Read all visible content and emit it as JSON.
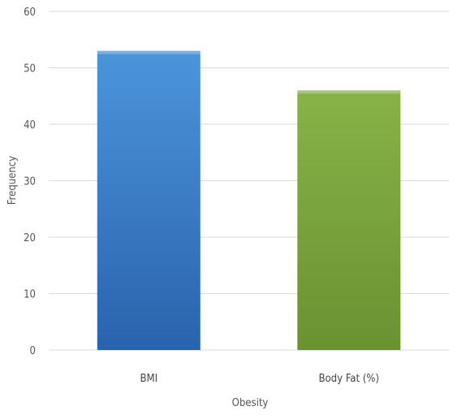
{
  "chart_data": {
    "type": "bar",
    "title": "",
    "xlabel": "Obesity",
    "ylabel": "Frequency",
    "categories": [
      "BMI",
      "Body Fat (%)"
    ],
    "values": [
      53,
      46
    ],
    "ylim": [
      0,
      60
    ],
    "yticks": [
      0,
      10,
      20,
      30,
      40,
      50,
      60
    ],
    "grid": true,
    "legend": "none",
    "colors": [
      "#3f86cf",
      "#78a43c"
    ]
  }
}
